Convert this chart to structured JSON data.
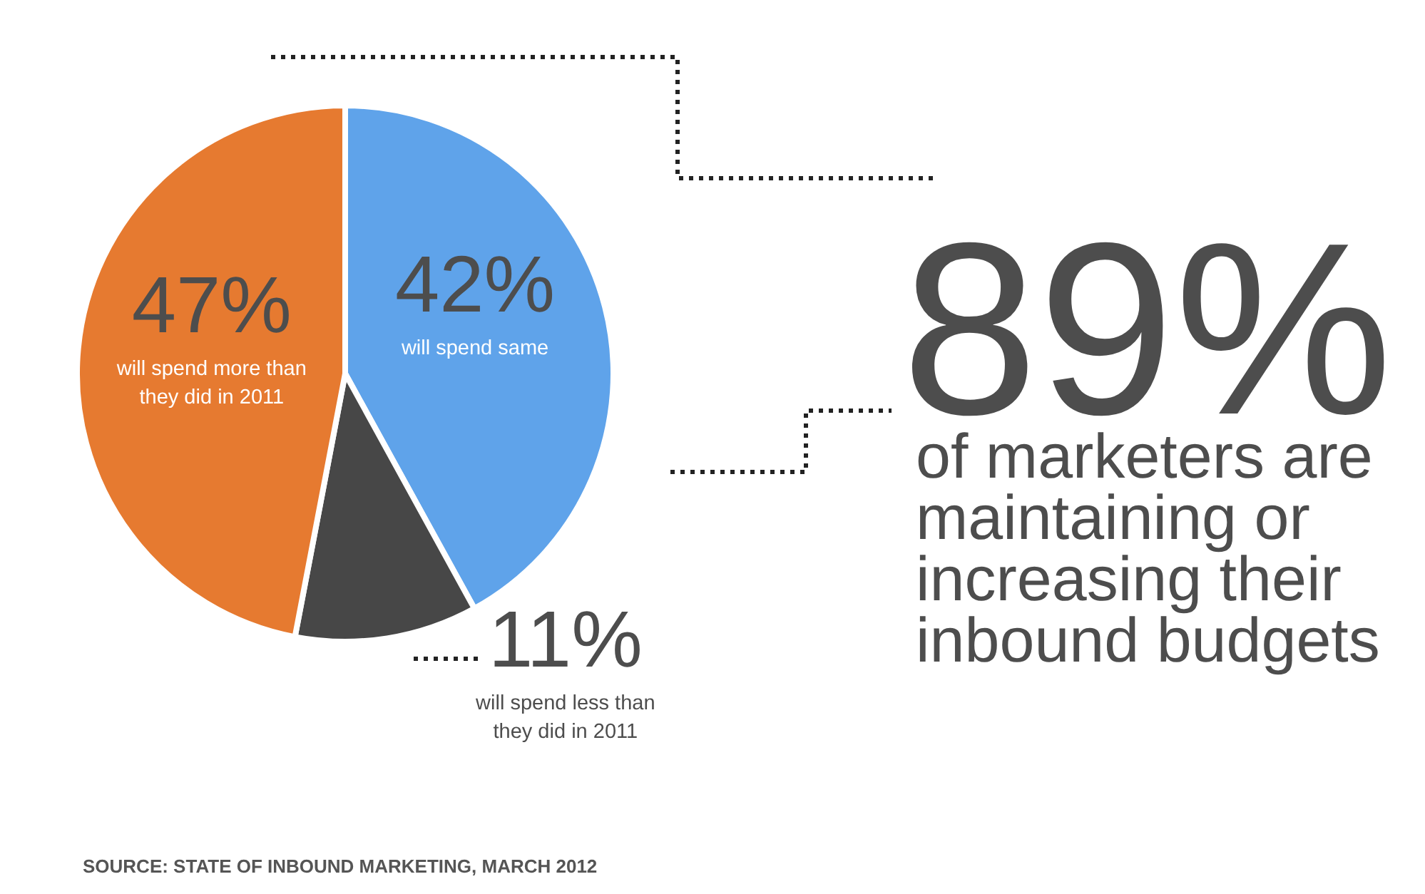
{
  "chart_data": {
    "type": "pie",
    "categories": [
      "will spend same",
      "will spend less than they did in 2011",
      "will spend more than they did in 2011"
    ],
    "values": [
      42,
      11,
      47
    ],
    "colors": [
      "#5fa3ea",
      "#474747",
      "#e67a30"
    ],
    "value_labels": [
      "42%",
      "11%",
      "47%"
    ],
    "annotations": [
      "89%",
      "of marketers are maintaining or increasing their inbound budgets",
      "SOURCE: STATE OF INBOUND MARKETING, MARCH 2012"
    ]
  }
}
